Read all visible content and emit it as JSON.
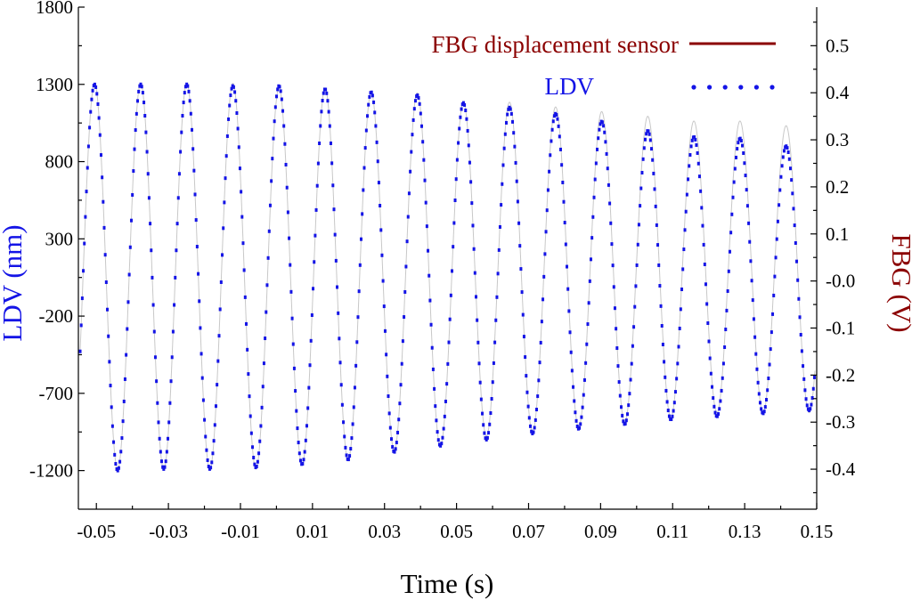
{
  "chart_data": {
    "type": "line",
    "title": "",
    "xlabel": "Time (s)",
    "ylabel_left": "LDV (nm)",
    "ylabel_right": "FBG (V)",
    "xlim": [
      -0.055,
      0.15
    ],
    "ylim_left": [
      -1450,
      1800
    ],
    "ylim_right": [
      -0.485,
      0.582
    ],
    "x_ticks": [
      -0.05,
      -0.03,
      -0.01,
      0.01,
      0.03,
      0.05,
      0.07,
      0.09,
      0.11,
      0.13,
      0.15
    ],
    "x_tick_labels": [
      "-0.05",
      "-0.03",
      "-0.01",
      "0.01",
      "0.03",
      "0.05",
      "0.07",
      "0.09",
      "0.11",
      "0.13",
      "0.15"
    ],
    "y_left_ticks": [
      -1200,
      -700,
      -200,
      300,
      800,
      1300,
      1800
    ],
    "y_left_tick_labels": [
      "-1200",
      "-700",
      "-200",
      "300",
      "800",
      "1300",
      "1800"
    ],
    "y_right_ticks": [
      -0.4,
      -0.3,
      -0.2,
      -0.1,
      0.0,
      0.1,
      0.2,
      0.3,
      0.4,
      0.5
    ],
    "y_right_tick_labels": [
      "-0.4",
      "-0.3",
      "-0.2",
      "-0.1",
      "-0.0",
      "0.1",
      "0.2",
      "0.3",
      "0.4",
      "0.5"
    ],
    "legend_position": "top-right",
    "grid": false,
    "series": [
      {
        "name": "FBG displacement sensor",
        "axis": "right",
        "style": "solid",
        "color": "#8b0000",
        "trace_color": "#c8c8c8",
        "peaks": [
          [
            -0.0505,
            0.42
          ],
          [
            -0.0377,
            0.42
          ],
          [
            -0.0249,
            0.42
          ],
          [
            -0.0121,
            0.42
          ],
          [
            0.0007,
            0.41
          ],
          [
            0.0135,
            0.41
          ],
          [
            0.0263,
            0.4
          ],
          [
            0.0391,
            0.4
          ],
          [
            0.0519,
            0.38
          ],
          [
            0.0647,
            0.38
          ],
          [
            0.0775,
            0.37
          ],
          [
            0.0903,
            0.36
          ],
          [
            0.1031,
            0.35
          ],
          [
            0.1159,
            0.34
          ],
          [
            0.1287,
            0.34
          ],
          [
            0.1415,
            0.33
          ]
        ],
        "troughs": [
          [
            -0.0441,
            -0.4
          ],
          [
            -0.0313,
            -0.4
          ],
          [
            -0.0185,
            -0.4
          ],
          [
            -0.0057,
            -0.4
          ],
          [
            0.0071,
            -0.39
          ],
          [
            0.0199,
            -0.38
          ],
          [
            0.0327,
            -0.36
          ],
          [
            0.0455,
            -0.35
          ],
          [
            0.0583,
            -0.33
          ],
          [
            0.0711,
            -0.32
          ],
          [
            0.0839,
            -0.31
          ],
          [
            0.0967,
            -0.3
          ],
          [
            0.1095,
            -0.29
          ],
          [
            0.1223,
            -0.28
          ],
          [
            0.1351,
            -0.28
          ],
          [
            0.1479,
            -0.28
          ]
        ]
      },
      {
        "name": "LDV",
        "axis": "left",
        "style": "dotted",
        "color": "#1414e6",
        "peaks": [
          [
            -0.0505,
            1300
          ],
          [
            -0.0377,
            1300
          ],
          [
            -0.0249,
            1300
          ],
          [
            -0.0121,
            1290
          ],
          [
            0.0007,
            1290
          ],
          [
            0.0135,
            1270
          ],
          [
            0.0263,
            1250
          ],
          [
            0.0391,
            1230
          ],
          [
            0.0519,
            1180
          ],
          [
            0.0647,
            1150
          ],
          [
            0.0775,
            1110
          ],
          [
            0.0903,
            1060
          ],
          [
            0.1031,
            1000
          ],
          [
            0.1159,
            960
          ],
          [
            0.1287,
            950
          ],
          [
            0.1415,
            900
          ]
        ],
        "troughs": [
          [
            -0.0441,
            -1200
          ],
          [
            -0.0313,
            -1190
          ],
          [
            -0.0185,
            -1190
          ],
          [
            -0.0057,
            -1180
          ],
          [
            0.0071,
            -1160
          ],
          [
            0.0199,
            -1130
          ],
          [
            0.0327,
            -1080
          ],
          [
            0.0455,
            -1040
          ],
          [
            0.0583,
            -1000
          ],
          [
            0.0711,
            -960
          ],
          [
            0.0839,
            -930
          ],
          [
            0.0967,
            -900
          ],
          [
            0.1095,
            -870
          ],
          [
            0.1223,
            -850
          ],
          [
            0.1351,
            -830
          ],
          [
            0.1479,
            -810
          ]
        ]
      }
    ]
  },
  "colors": {
    "ldv_blue": "#1414e6",
    "fbg_red": "#8b0000",
    "axis": "#000000"
  }
}
